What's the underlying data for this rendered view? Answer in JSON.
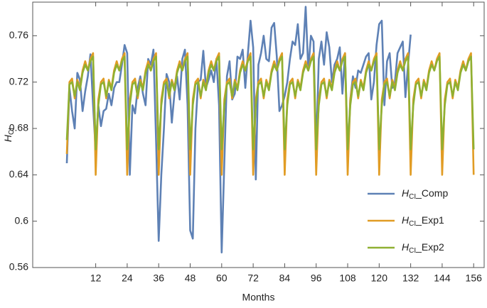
{
  "chart_data": {
    "type": "line",
    "x_label": "Months",
    "y_label": "HCI",
    "x": [
      1,
      2,
      3,
      4,
      5,
      6,
      7,
      8,
      9,
      10,
      11,
      12,
      13,
      14,
      15,
      16,
      17,
      18,
      19,
      20,
      21,
      22,
      23,
      24,
      25,
      26,
      27,
      28,
      29,
      30,
      31,
      32,
      33,
      34,
      35,
      36,
      37,
      38,
      39,
      40,
      41,
      42,
      43,
      44,
      45,
      46,
      47,
      48,
      49,
      50,
      51,
      52,
      53,
      54,
      55,
      56,
      57,
      58,
      59,
      60,
      61,
      62,
      63,
      64,
      65,
      66,
      67,
      68,
      69,
      70,
      71,
      72,
      73,
      74,
      75,
      76,
      77,
      78,
      79,
      80,
      81,
      82,
      83,
      84,
      85,
      86,
      87,
      88,
      89,
      90,
      91,
      92,
      93,
      94,
      95,
      96,
      97,
      98,
      99,
      100,
      101,
      102,
      103,
      104,
      105,
      106,
      107,
      108,
      109,
      110,
      111,
      112,
      113,
      114,
      115,
      116,
      117,
      118,
      119,
      120,
      121,
      122,
      123,
      124,
      125,
      126,
      127,
      128,
      129,
      130,
      131,
      132,
      133,
      134,
      135,
      136,
      137,
      138,
      139,
      140,
      141,
      142,
      143,
      144,
      145,
      146,
      147,
      148,
      149,
      150,
      151,
      152,
      153,
      154,
      155,
      156
    ],
    "series": [
      {
        "name": "HCI_Comp",
        "color": "#5e81b5",
        "values": [
          0.65,
          0.715,
          0.695,
          0.68,
          0.728,
          0.722,
          0.695,
          0.712,
          0.725,
          0.744,
          0.7,
          0.66,
          0.7,
          0.682,
          0.695,
          0.697,
          0.71,
          0.7,
          0.715,
          0.72,
          0.72,
          0.735,
          0.752,
          0.745,
          0.64,
          0.7,
          0.693,
          0.715,
          0.725,
          0.71,
          0.7,
          0.74,
          0.735,
          0.748,
          0.67,
          0.583,
          0.64,
          0.68,
          0.727,
          0.72,
          0.685,
          0.71,
          0.725,
          0.705,
          0.74,
          0.748,
          0.7,
          0.592,
          0.585,
          0.68,
          0.72,
          0.722,
          0.747,
          0.715,
          0.722,
          0.73,
          0.72,
          0.74,
          0.7,
          0.573,
          0.65,
          0.725,
          0.738,
          0.705,
          0.71,
          0.742,
          0.74,
          0.748,
          0.715,
          0.745,
          0.773,
          0.75,
          0.636,
          0.735,
          0.745,
          0.76,
          0.74,
          0.738,
          0.767,
          0.771,
          0.742,
          0.695,
          0.7,
          0.708,
          0.72,
          0.74,
          0.755,
          0.752,
          0.77,
          0.74,
          0.745,
          0.785,
          0.73,
          0.76,
          0.755,
          0.66,
          0.74,
          0.755,
          0.735,
          0.763,
          0.75,
          0.72,
          0.735,
          0.74,
          0.75,
          0.71,
          0.745,
          0.657,
          0.705,
          0.725,
          0.715,
          0.73,
          0.728,
          0.735,
          0.742,
          0.745,
          0.705,
          0.72,
          0.752,
          0.77,
          0.773,
          0.7,
          0.738,
          0.745,
          0.715,
          0.72,
          0.745,
          0.75,
          0.755,
          0.707,
          0.735,
          0.761,
          null,
          null,
          null,
          null,
          null,
          null,
          null,
          null,
          null,
          null,
          null,
          null,
          null,
          null,
          null,
          null,
          null,
          null,
          null,
          null,
          null,
          null,
          null,
          null
        ]
      },
      {
        "name": "HCI_Exp1",
        "color": "#e19c24",
        "values": [
          0.658,
          0.72,
          0.723,
          0.706,
          0.722,
          0.715,
          0.73,
          0.738,
          0.73,
          0.74,
          0.745,
          0.64,
          0.705,
          0.72,
          0.723,
          0.706,
          0.722,
          0.715,
          0.73,
          0.738,
          0.73,
          0.74,
          0.745,
          0.64,
          0.705,
          0.72,
          0.723,
          0.706,
          0.722,
          0.715,
          0.73,
          0.738,
          0.73,
          0.74,
          0.745,
          0.64,
          0.705,
          0.72,
          0.723,
          0.706,
          0.722,
          0.715,
          0.73,
          0.738,
          0.73,
          0.74,
          0.745,
          0.64,
          0.705,
          0.72,
          0.723,
          0.706,
          0.722,
          0.715,
          0.73,
          0.738,
          0.73,
          0.74,
          0.745,
          0.64,
          0.705,
          0.72,
          0.723,
          0.706,
          0.722,
          0.715,
          0.73,
          0.738,
          0.73,
          0.74,
          0.745,
          0.64,
          0.705,
          0.72,
          0.723,
          0.706,
          0.722,
          0.715,
          0.73,
          0.738,
          0.73,
          0.74,
          0.745,
          0.64,
          0.705,
          0.72,
          0.723,
          0.706,
          0.722,
          0.715,
          0.73,
          0.738,
          0.73,
          0.74,
          0.745,
          0.64,
          0.705,
          0.72,
          0.723,
          0.706,
          0.722,
          0.715,
          0.73,
          0.738,
          0.73,
          0.74,
          0.745,
          0.64,
          0.705,
          0.72,
          0.723,
          0.706,
          0.722,
          0.715,
          0.73,
          0.738,
          0.73,
          0.74,
          0.745,
          0.64,
          0.705,
          0.72,
          0.723,
          0.706,
          0.722,
          0.715,
          0.73,
          0.738,
          0.73,
          0.74,
          0.745,
          0.64,
          0.705,
          0.72,
          0.723,
          0.706,
          0.722,
          0.715,
          0.73,
          0.738,
          0.73,
          0.74,
          0.745,
          0.64,
          0.705,
          0.72,
          0.723,
          0.706,
          0.722,
          0.715,
          0.73,
          0.738,
          0.73,
          0.74,
          0.745,
          0.64
        ]
      },
      {
        "name": "HCI_Exp2",
        "color": "#8fb032",
        "values": [
          0.67,
          0.718,
          0.72,
          0.708,
          0.72,
          0.713,
          0.728,
          0.735,
          0.73,
          0.738,
          0.742,
          0.662,
          0.7,
          0.718,
          0.72,
          0.708,
          0.72,
          0.713,
          0.728,
          0.735,
          0.73,
          0.738,
          0.742,
          0.662,
          0.7,
          0.718,
          0.72,
          0.708,
          0.72,
          0.713,
          0.728,
          0.735,
          0.73,
          0.738,
          0.742,
          0.662,
          0.7,
          0.718,
          0.72,
          0.708,
          0.72,
          0.713,
          0.728,
          0.735,
          0.73,
          0.738,
          0.742,
          0.662,
          0.7,
          0.718,
          0.72,
          0.708,
          0.72,
          0.713,
          0.728,
          0.735,
          0.73,
          0.738,
          0.742,
          0.662,
          0.7,
          0.718,
          0.72,
          0.708,
          0.72,
          0.713,
          0.728,
          0.735,
          0.73,
          0.738,
          0.742,
          0.662,
          0.7,
          0.718,
          0.72,
          0.708,
          0.72,
          0.713,
          0.728,
          0.735,
          0.73,
          0.738,
          0.742,
          0.662,
          0.7,
          0.718,
          0.72,
          0.708,
          0.72,
          0.713,
          0.728,
          0.735,
          0.73,
          0.738,
          0.742,
          0.662,
          0.7,
          0.718,
          0.72,
          0.708,
          0.72,
          0.713,
          0.728,
          0.735,
          0.73,
          0.738,
          0.742,
          0.662,
          0.7,
          0.718,
          0.72,
          0.708,
          0.72,
          0.713,
          0.728,
          0.735,
          0.73,
          0.738,
          0.742,
          0.662,
          0.7,
          0.718,
          0.72,
          0.708,
          0.72,
          0.713,
          0.728,
          0.735,
          0.73,
          0.738,
          0.742,
          0.662,
          0.7,
          0.718,
          0.72,
          0.708,
          0.72,
          0.713,
          0.728,
          0.735,
          0.73,
          0.738,
          0.742,
          0.662,
          0.7,
          0.718,
          0.72,
          0.708,
          0.72,
          0.713,
          0.728,
          0.735,
          0.73,
          0.738,
          0.742,
          0.662
        ]
      }
    ],
    "xlim": [
      -12,
      160
    ],
    "ylim": [
      0.56,
      0.789
    ],
    "xticks": [
      12,
      24,
      36,
      48,
      60,
      72,
      84,
      96,
      108,
      120,
      132,
      144,
      156
    ],
    "yticks": [
      0.56,
      0.6,
      0.64,
      0.68,
      0.72,
      0.76
    ],
    "legend": "lower right"
  }
}
